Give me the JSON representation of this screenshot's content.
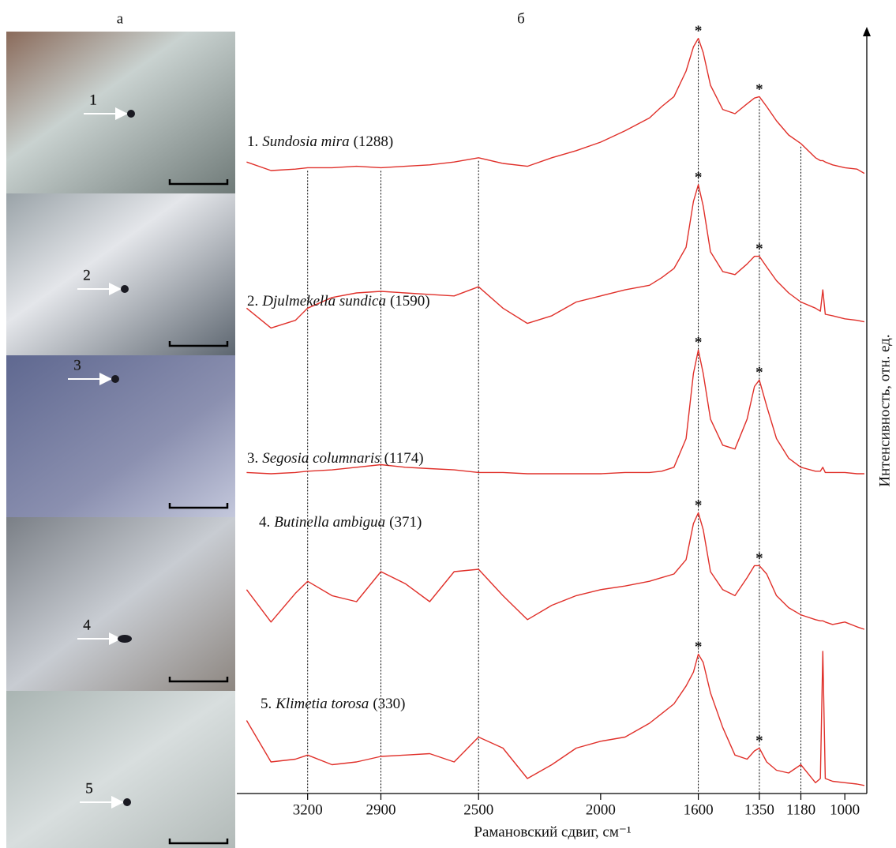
{
  "chart_data": {
    "type": "line",
    "panel_labels": [
      "а",
      "б"
    ],
    "photo_labels": [
      "1",
      "2",
      "3",
      "4",
      "5"
    ],
    "x_label": "Рамановский сдвиг, см⁻¹",
    "y_label": "Интенсивность, отн. ед.",
    "peak_marker": "*",
    "xlim": [
      3490,
      910
    ],
    "xticks": [
      3200,
      2900,
      2500,
      2000,
      1600,
      1350,
      1180,
      1000
    ],
    "guides": [
      3200,
      2900,
      2500,
      1600,
      1350,
      1180
    ],
    "peaks": [
      1600,
      1350
    ],
    "ylim": [
      0,
      100
    ],
    "x": [
      3450,
      3350,
      3250,
      3200,
      3100,
      3000,
      2900,
      2800,
      2700,
      2600,
      2500,
      2400,
      2300,
      2200,
      2100,
      2000,
      1900,
      1800,
      1750,
      1700,
      1650,
      1620,
      1600,
      1580,
      1550,
      1500,
      1450,
      1400,
      1370,
      1350,
      1320,
      1280,
      1230,
      1180,
      1120,
      1100,
      1090,
      1080,
      1050,
      1000,
      950,
      920
    ],
    "series": [
      {
        "prefix": "1.",
        "name": "Sundosia mira",
        "suffix": "(1288)",
        "color": "#e0302a",
        "values": [
          11,
          5,
          6,
          7,
          7,
          8,
          7,
          8,
          9,
          11,
          14,
          10,
          8,
          14,
          19,
          25,
          33,
          42,
          50,
          57,
          75,
          92,
          98,
          88,
          65,
          48,
          45,
          52,
          56,
          57,
          50,
          40,
          30,
          24,
          14,
          12,
          12,
          11,
          9,
          7,
          6,
          3
        ]
      },
      {
        "prefix": "2.",
        "name": "Djulmekella sundica",
        "suffix": "(1590)",
        "color": "#e0302a",
        "values": [
          18,
          5,
          10,
          18,
          25,
          28,
          29,
          28,
          27,
          26,
          32,
          18,
          8,
          13,
          22,
          26,
          30,
          33,
          38,
          44,
          58,
          88,
          99,
          85,
          55,
          42,
          40,
          47,
          52,
          52,
          45,
          36,
          28,
          22,
          18,
          16,
          30,
          14,
          13,
          11,
          10,
          9
        ]
      },
      {
        "prefix": "3.",
        "name": "Segosia columnaris",
        "suffix": "(1174)",
        "color": "#e0302a",
        "values": [
          4,
          3,
          4,
          5,
          6,
          8,
          10,
          8,
          7,
          6,
          4,
          4,
          3,
          3,
          3,
          3,
          4,
          4,
          5,
          8,
          30,
          80,
          98,
          80,
          45,
          25,
          22,
          45,
          70,
          75,
          55,
          30,
          15,
          8,
          5,
          5,
          8,
          4,
          4,
          4,
          3,
          3
        ]
      },
      {
        "prefix": "4.",
        "name": "Butinella ambigua",
        "suffix": "(371)",
        "color": "#e0302a",
        "values": [
          35,
          8,
          32,
          42,
          30,
          25,
          50,
          40,
          25,
          50,
          52,
          30,
          10,
          22,
          30,
          35,
          38,
          42,
          45,
          48,
          60,
          90,
          99,
          85,
          50,
          35,
          30,
          45,
          55,
          55,
          48,
          30,
          20,
          14,
          10,
          9,
          9,
          8,
          6,
          8,
          4,
          2
        ]
      },
      {
        "prefix": "5.",
        "name": "Klimetia torosa",
        "suffix": "(330)",
        "color": "#e0302a",
        "values": [
          50,
          20,
          22,
          25,
          18,
          20,
          24,
          25,
          26,
          20,
          38,
          30,
          8,
          18,
          30,
          35,
          38,
          48,
          55,
          62,
          75,
          85,
          98,
          92,
          70,
          45,
          25,
          22,
          28,
          30,
          20,
          14,
          12,
          18,
          5,
          8,
          100,
          8,
          6,
          5,
          4,
          3
        ]
      }
    ]
  }
}
